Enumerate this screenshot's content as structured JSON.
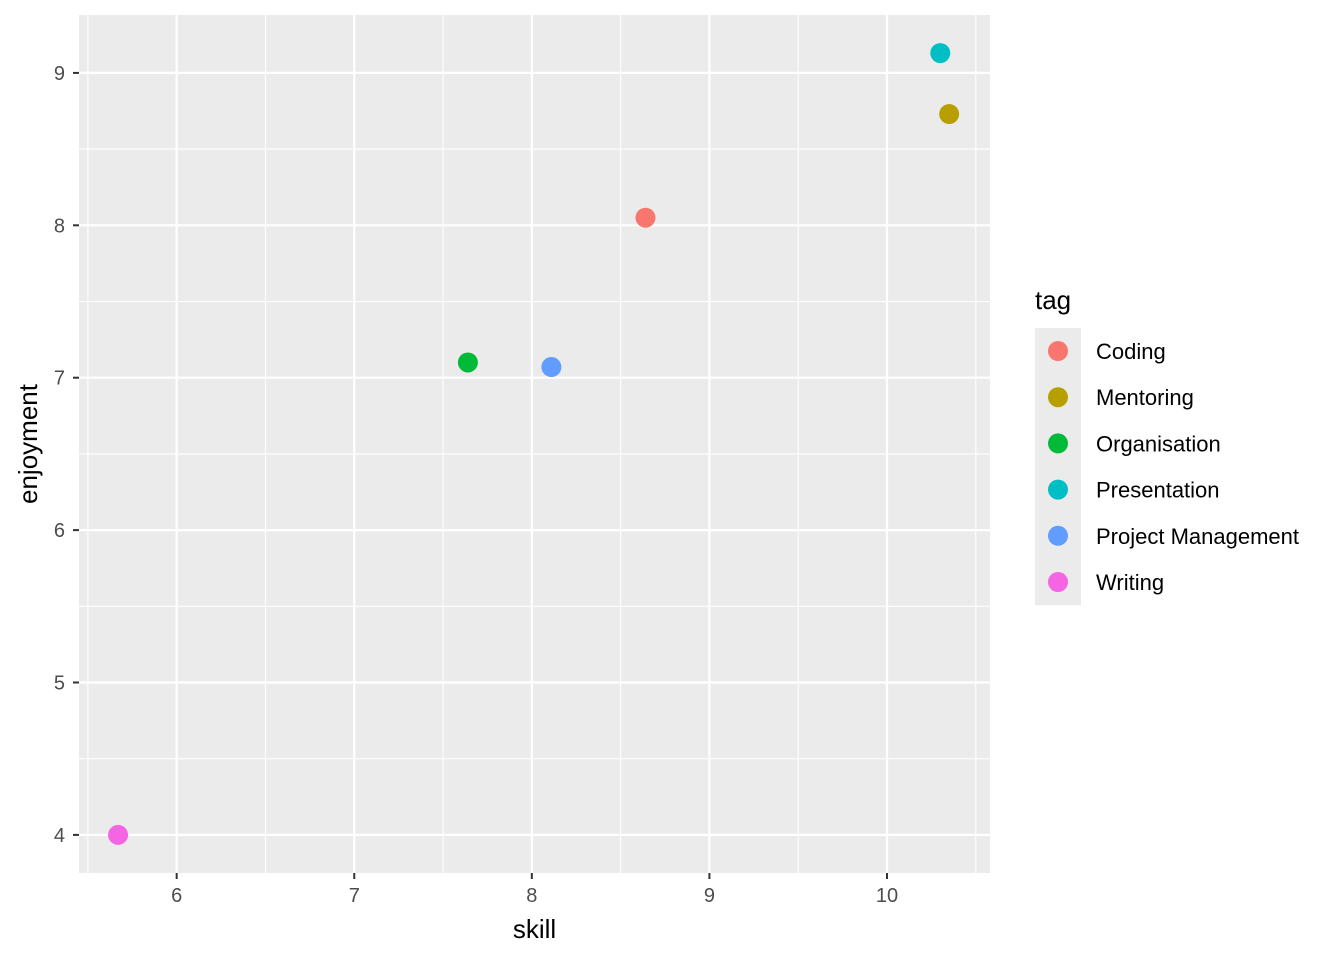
{
  "chart_data": {
    "type": "scatter",
    "title": "",
    "xlabel": "skill",
    "ylabel": "enjoyment",
    "xlim": [
      5.45,
      10.58
    ],
    "ylim": [
      3.75,
      9.38
    ],
    "x_ticks": [
      6,
      7,
      8,
      9,
      10
    ],
    "y_ticks": [
      4,
      5,
      6,
      7,
      8,
      9
    ],
    "grid": true,
    "legend": {
      "title": "tag",
      "position": "right"
    },
    "series": [
      {
        "name": "Coding",
        "color": "#F8766D",
        "x": [
          8.64
        ],
        "y": [
          8.05
        ]
      },
      {
        "name": "Mentoring",
        "color": "#B79F00",
        "x": [
          10.35
        ],
        "y": [
          8.73
        ]
      },
      {
        "name": "Organisation",
        "color": "#00BA38",
        "x": [
          7.64
        ],
        "y": [
          7.1
        ]
      },
      {
        "name": "Presentation",
        "color": "#00BFC4",
        "x": [
          10.3
        ],
        "y": [
          9.13
        ]
      },
      {
        "name": "Project Management",
        "color": "#619CFF",
        "x": [
          8.11
        ],
        "y": [
          7.07
        ]
      },
      {
        "name": "Writing",
        "color": "#F564E3",
        "x": [
          5.67
        ],
        "y": [
          4.0
        ]
      }
    ]
  }
}
